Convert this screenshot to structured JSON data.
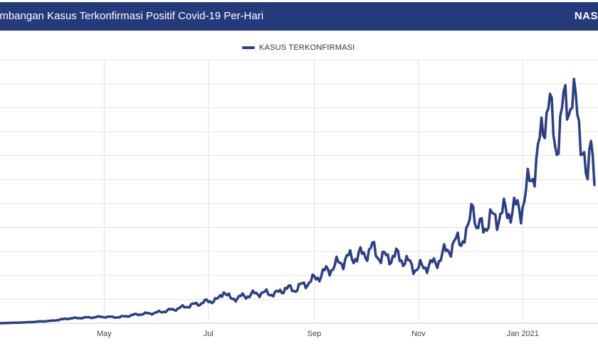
{
  "header": {
    "title": "embangan Kasus Terkonfirmasi Positif Covid-19 Per-Hari",
    "scope": "NAS"
  },
  "colors": {
    "header_bg": "#243a7a",
    "series": "#2b3f86",
    "grid": "#e3e3e3"
  },
  "chart_data": {
    "type": "line",
    "title": "embangan Kasus Terkonfirmasi Positif Covid-19 Per-Hari",
    "xlabel": "",
    "ylabel": "",
    "legend_position": "top-center",
    "grid": true,
    "x_ticks": [
      {
        "label": "May",
        "date": "2020-05-01"
      },
      {
        "label": "Jul",
        "date": "2020-07-01"
      },
      {
        "label": "Sep",
        "date": "2020-09-01"
      },
      {
        "label": "Nov",
        "date": "2020-11-01"
      },
      {
        "label": "Jan 2021",
        "date": "2021-01-01"
      }
    ],
    "series": [
      {
        "name": "KASUS TERKONFIRMASI",
        "points": [
          [
            "2020-03-01",
            0
          ],
          [
            "2020-03-15",
            50
          ],
          [
            "2020-03-31",
            150
          ],
          [
            "2020-04-10",
            300
          ],
          [
            "2020-04-20",
            350
          ],
          [
            "2020-04-30",
            400
          ],
          [
            "2020-05-10",
            380
          ],
          [
            "2020-05-20",
            550
          ],
          [
            "2020-05-31",
            650
          ],
          [
            "2020-06-10",
            850
          ],
          [
            "2020-06-20",
            1100
          ],
          [
            "2020-06-30",
            1350
          ],
          [
            "2020-07-07",
            1500
          ],
          [
            "2020-07-10",
            2050
          ],
          [
            "2020-07-14",
            1500
          ],
          [
            "2020-07-20",
            1650
          ],
          [
            "2020-07-31",
            1900
          ],
          [
            "2020-08-10",
            1850
          ],
          [
            "2020-08-15",
            2200
          ],
          [
            "2020-08-20",
            2100
          ],
          [
            "2020-08-31",
            2700
          ],
          [
            "2020-09-10",
            3400
          ],
          [
            "2020-09-20",
            4050
          ],
          [
            "2020-09-30",
            4300
          ],
          [
            "2020-10-05",
            4700
          ],
          [
            "2020-10-10",
            4100
          ],
          [
            "2020-10-20",
            4200
          ],
          [
            "2020-10-31",
            3400
          ],
          [
            "2020-11-05",
            3600
          ],
          [
            "2020-11-10",
            3700
          ],
          [
            "2020-11-20",
            4800
          ],
          [
            "2020-11-30",
            5600
          ],
          [
            "2020-12-03",
            8100
          ],
          [
            "2020-12-05",
            5800
          ],
          [
            "2020-12-15",
            6600
          ],
          [
            "2020-12-25",
            7100
          ],
          [
            "2020-12-31",
            7200
          ],
          [
            "2021-01-05",
            8800
          ],
          [
            "2021-01-10",
            10500
          ],
          [
            "2021-01-16",
            14200
          ],
          [
            "2021-01-20",
            11000
          ],
          [
            "2021-01-25",
            13500
          ],
          [
            "2021-01-30",
            14300
          ],
          [
            "2021-02-05",
            11500
          ],
          [
            "2021-02-08",
            8100
          ],
          [
            "2021-02-10",
            12400
          ],
          [
            "2021-02-12",
            9500
          ]
        ]
      }
    ]
  }
}
